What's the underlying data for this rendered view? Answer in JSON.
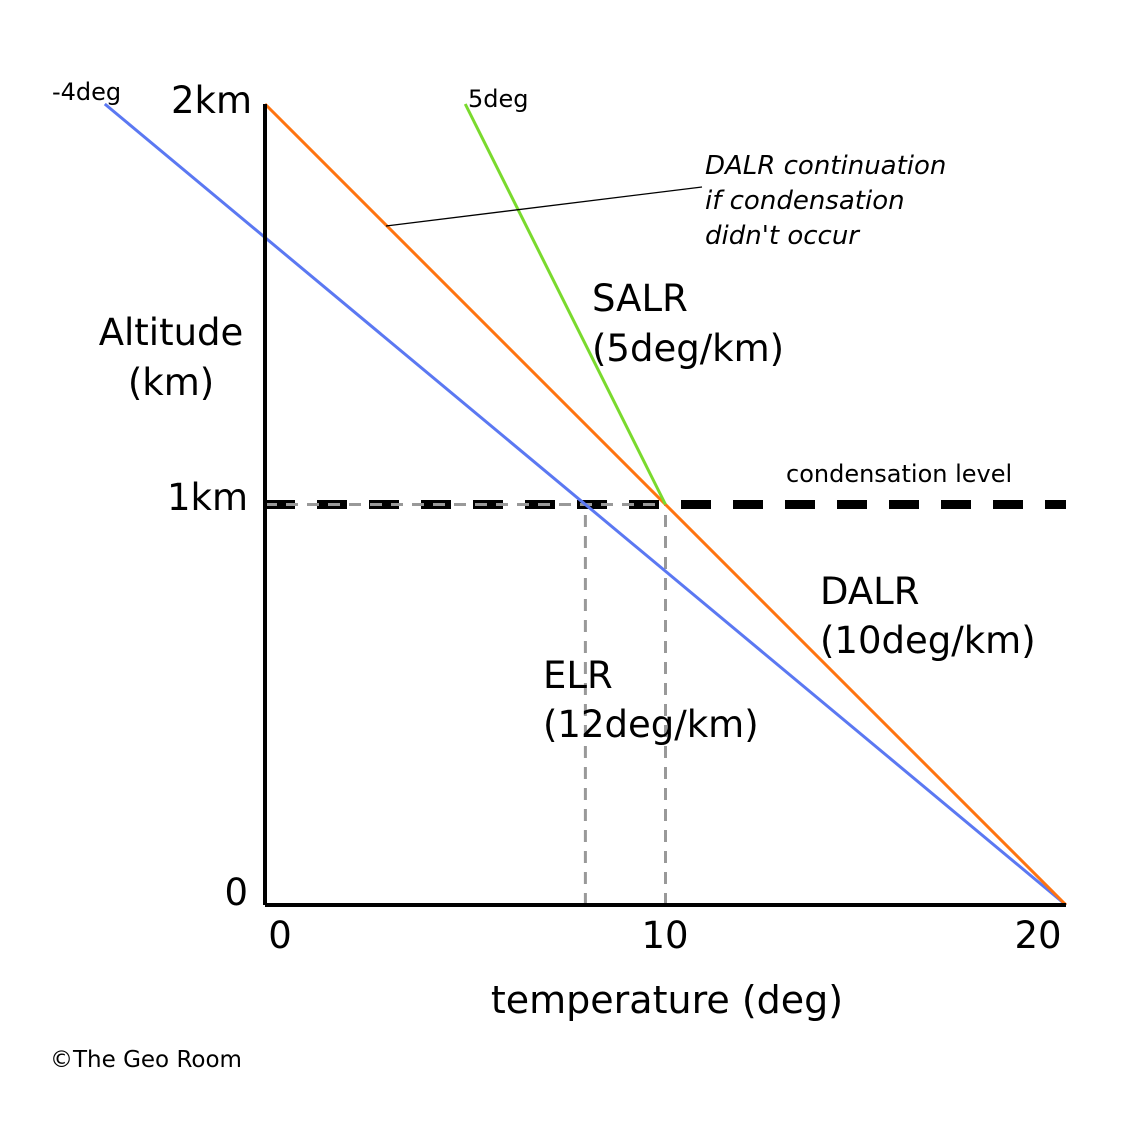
{
  "chart_data": {
    "type": "line",
    "xlabel": "temperature (deg)",
    "ylabel_lines": [
      "Altitude",
      "(km)"
    ],
    "xlim": [
      0,
      20
    ],
    "ylim": [
      0,
      2
    ],
    "x_ticks": [
      {
        "value": 0,
        "label": "0"
      },
      {
        "value": 10,
        "label": "10"
      },
      {
        "value": 20,
        "label": "20"
      }
    ],
    "y_ticks": [
      {
        "value": 0,
        "label": "0"
      },
      {
        "value": 1,
        "label": "1km"
      },
      {
        "value": 2,
        "label": "2km"
      }
    ],
    "series": [
      {
        "key": "elr",
        "name_lines": [
          "ELR",
          "(12deg/km)"
        ],
        "color": "#5b78f2",
        "points": [
          [
            20,
            0
          ],
          [
            -4,
            2
          ]
        ],
        "end_label": "-4deg"
      },
      {
        "key": "dalr",
        "name_lines": [
          "DALR",
          "(10deg/km)"
        ],
        "color": "#ff7410",
        "points": [
          [
            20,
            0
          ],
          [
            0,
            2
          ]
        ]
      },
      {
        "key": "salr",
        "name_lines": [
          "SALR",
          "(5deg/km)"
        ],
        "color": "#7ada2e",
        "points": [
          [
            10,
            1
          ],
          [
            5,
            2
          ]
        ],
        "end_label": "5deg"
      }
    ],
    "condensation_level": {
      "y": 1,
      "label": "condensation level"
    },
    "guides": [
      {
        "x": 8,
        "y": 1
      },
      {
        "x": 10,
        "y": 1
      }
    ],
    "annotation": {
      "lines": [
        "DALR continuation",
        "if condensation",
        "didn't occur"
      ]
    },
    "credit": "©The Geo Room",
    "colors": {
      "guide": "#999999",
      "condensation": "#000000",
      "axis": "#000000"
    }
  }
}
